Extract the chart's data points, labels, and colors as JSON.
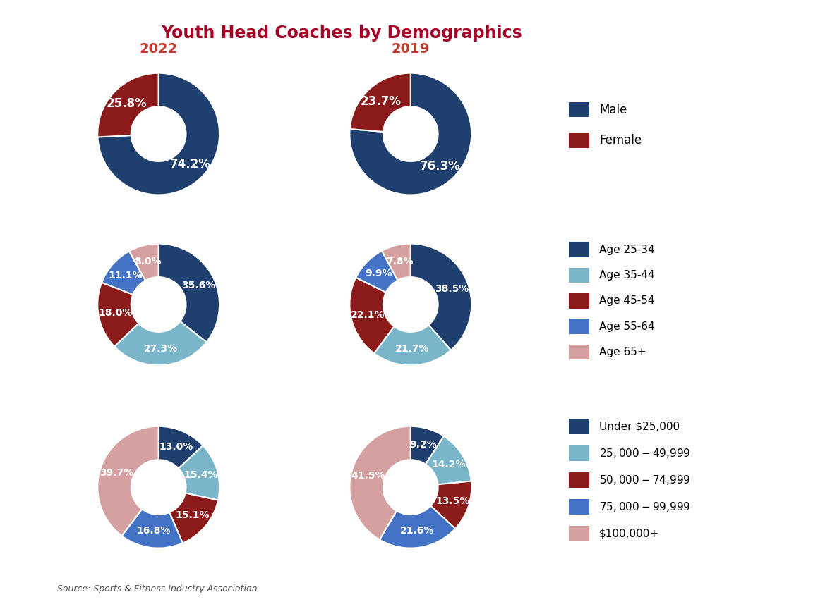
{
  "title": "Youth Head Coaches by Demographics",
  "title_color": "#a50026",
  "year_labels": [
    "2022",
    "2019"
  ],
  "year_label_color": "#c0392b",
  "source_text": "Source: Sports & Fitness Industry Association",
  "gender_2022": [
    74.2,
    25.8
  ],
  "gender_2019": [
    76.3,
    23.7
  ],
  "gender_colors": [
    "#1f3f6e",
    "#8b1a1a"
  ],
  "gender_labels_2022": [
    "74.2%",
    "25.8%"
  ],
  "gender_labels_2019": [
    "76.3%",
    "23.7%"
  ],
  "age_2022": [
    35.6,
    27.3,
    18.0,
    11.1,
    8.0
  ],
  "age_2019": [
    38.5,
    21.7,
    22.1,
    9.9,
    7.8
  ],
  "age_colors": [
    "#1f3f6e",
    "#7ab5c9",
    "#8b1a1a",
    "#4472c4",
    "#d4a0a0"
  ],
  "age_labels_2022": [
    "35.6%",
    "27.3%",
    "18.0%",
    "11.1%",
    "8.0%"
  ],
  "age_labels_2019": [
    "38.5%",
    "21.7%",
    "22.1%",
    "9.9%",
    "7.8%"
  ],
  "income_2022": [
    13.0,
    15.4,
    15.1,
    16.8,
    39.7
  ],
  "income_2019": [
    9.2,
    14.2,
    13.5,
    21.6,
    41.5
  ],
  "income_colors": [
    "#1f3f6e",
    "#7ab5c9",
    "#8b1a1a",
    "#4472c4",
    "#d4a0a0"
  ],
  "income_labels_2022": [
    "13.0%",
    "15.4%",
    "15.1%",
    "16.8%",
    "39.7%"
  ],
  "income_labels_2019": [
    "9.2%",
    "14.2%",
    "13.5%",
    "21.6%",
    "41.5%"
  ],
  "legend_gender": [
    "Male",
    "Female"
  ],
  "legend_age": [
    "Age 25-34",
    "Age 35-44",
    "Age 45-54",
    "Age 55-64",
    "Age 65+"
  ],
  "legend_income": [
    "Under $25,000",
    "$25,000-$49,999",
    "$50,000-$74,999",
    "$75,000-$99,999",
    "$100,000+"
  ],
  "wedge_lw": 1.5,
  "wedge_edge_color": "white",
  "donut_width": 0.55
}
